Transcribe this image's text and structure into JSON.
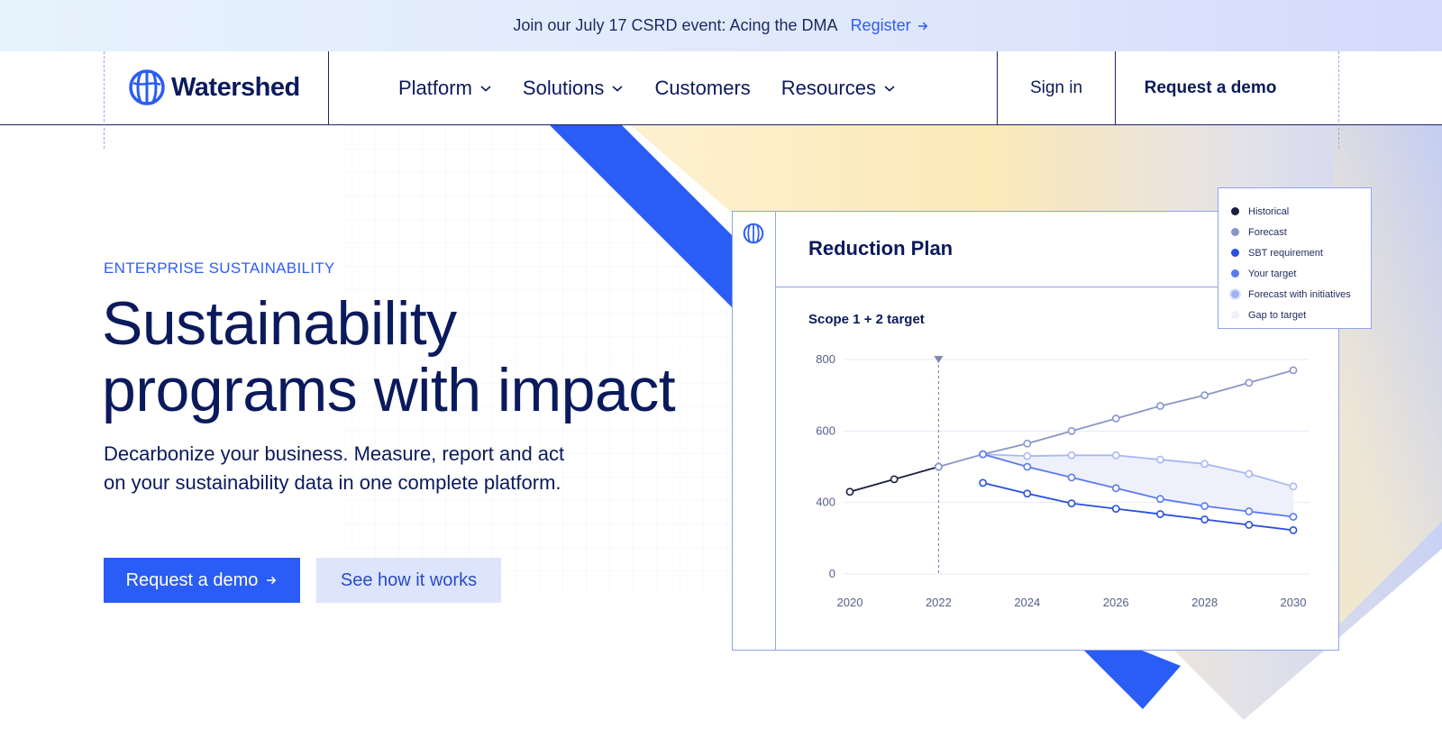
{
  "announcement": {
    "message": "Join our July 17 CSRD event: Acing the DMA",
    "link_label": "Register"
  },
  "header": {
    "logo_text": "Watershed",
    "nav": [
      {
        "label": "Platform",
        "has_dropdown": true
      },
      {
        "label": "Solutions",
        "has_dropdown": true
      },
      {
        "label": "Customers",
        "has_dropdown": false
      },
      {
        "label": "Resources",
        "has_dropdown": true
      }
    ],
    "sign_in": "Sign in",
    "request_demo": "Request a demo"
  },
  "hero": {
    "eyebrow": "ENTERPRISE SUSTAINABILITY",
    "title_line1": "Sustainability",
    "title_line2": "programs with impact",
    "subtitle_line1": "Decarbonize your business. Measure, report and act",
    "subtitle_line2": "on your sustainability data in one complete platform.",
    "primary_cta": "Request a demo",
    "secondary_cta": "See how it works"
  },
  "card": {
    "title": "Reduction Plan",
    "subtitle": "Scope 1 + 2 target"
  },
  "legend": [
    {
      "label": "Historical",
      "color": "#1a1f3d"
    },
    {
      "label": "Forecast",
      "color": "#8a96c8"
    },
    {
      "label": "SBT requirement",
      "color": "#2a4fe0"
    },
    {
      "label": "Your target",
      "color": "#5b7af0"
    },
    {
      "label": "Forecast with initiatives",
      "color": "#9fb2f5"
    },
    {
      "label": "Gap to target",
      "color": "#eef1fb"
    }
  ],
  "colors": {
    "brand_blue": "#2a5cf6",
    "navy": "#0b1a5c",
    "yellow_accent": "#fbe9b8"
  },
  "chart_data": {
    "type": "line",
    "title": "Reduction Plan",
    "subtitle": "Scope 1 + 2 target",
    "xlabel": "",
    "ylabel": "",
    "xlim": [
      2020,
      2030
    ],
    "ylim": [
      0,
      800
    ],
    "yticks": [
      0,
      400,
      600,
      800
    ],
    "xticks": [
      2020,
      2022,
      2024,
      2026,
      2028,
      2030
    ],
    "marker_year": 2022,
    "grid": true,
    "legend_position": "top-right",
    "series": [
      {
        "name": "Historical",
        "color": "#1a1f3d",
        "x": [
          2020,
          2021,
          2022
        ],
        "y": [
          430,
          465,
          500
        ]
      },
      {
        "name": "Forecast",
        "color": "#8a96c8",
        "x": [
          2022,
          2023,
          2024,
          2025,
          2026,
          2027,
          2028,
          2029,
          2030
        ],
        "y": [
          500,
          535,
          565,
          600,
          635,
          670,
          700,
          735,
          770
        ]
      },
      {
        "name": "Forecast with initiatives",
        "color": "#a9b8f2",
        "x": [
          2023,
          2024,
          2025,
          2026,
          2027,
          2028,
          2029,
          2030
        ],
        "y": [
          535,
          530,
          532,
          532,
          520,
          508,
          480,
          445
        ]
      },
      {
        "name": "Your target",
        "color": "#5b7af0",
        "x": [
          2023,
          2024,
          2025,
          2026,
          2027,
          2028,
          2029,
          2030
        ],
        "y": [
          535,
          500,
          470,
          440,
          410,
          380,
          350,
          320
        ]
      },
      {
        "name": "SBT requirement",
        "color": "#2a4fe0",
        "x": [
          2023,
          2024,
          2025,
          2026,
          2027,
          2028,
          2029,
          2030
        ],
        "y": [
          455,
          425,
          395,
          365,
          335,
          305,
          275,
          245
        ]
      }
    ]
  }
}
